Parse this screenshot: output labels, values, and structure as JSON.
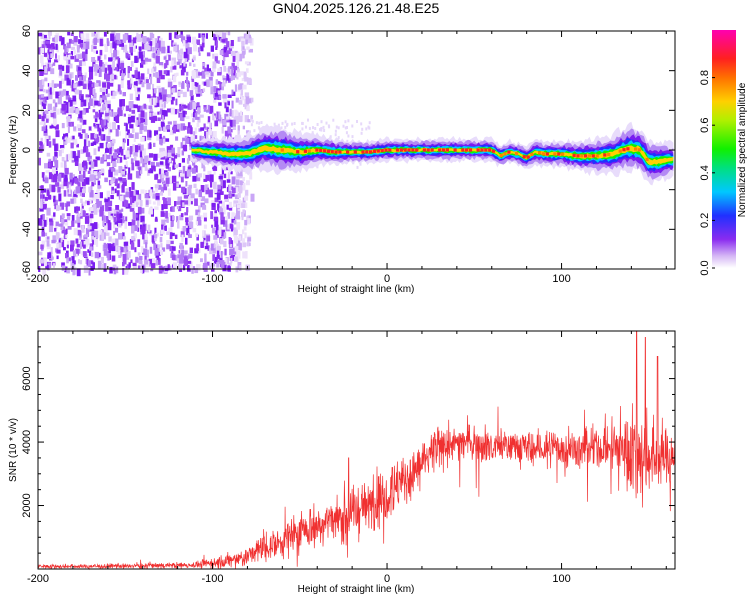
{
  "title": "GN04.2025.126.21.48.E25",
  "colors": {
    "snr_line": "#f03030",
    "axis": "#000000",
    "background": "#ffffff",
    "noise": "#7a1cf0"
  },
  "chart_data": [
    {
      "type": "heatmap",
      "xlabel": "Height of straight line (km)",
      "ylabel": "Frequency (Hz)",
      "xlim": [
        -200,
        165
      ],
      "ylim": [
        -60,
        60
      ],
      "x_ticks": [
        -200,
        -100,
        0,
        100
      ],
      "y_ticks": [
        -60,
        -40,
        -20,
        0,
        20,
        40,
        60
      ],
      "colorbar": {
        "label": "Normalized spectral amplitude",
        "range": [
          0,
          1
        ],
        "ticks": [
          "0.0",
          "0.2",
          "0.4",
          "0.6",
          "0.8"
        ],
        "colormap": "rainbow (white-violet-blue-cyan-green-yellow-orange-red-magenta)"
      },
      "noise_region_x": [
        -200,
        -80
      ],
      "signal_start_x": -112,
      "signal_center_freq": [
        [
          -112,
          0
        ],
        [
          -100,
          -1
        ],
        [
          -90,
          -2
        ],
        [
          -80,
          -2
        ],
        [
          -70,
          1
        ],
        [
          -60,
          0
        ],
        [
          -50,
          -1
        ],
        [
          -40,
          0
        ],
        [
          -30,
          -1
        ],
        [
          -20,
          -1
        ],
        [
          -10,
          -1
        ],
        [
          0,
          0
        ],
        [
          10,
          0
        ],
        [
          20,
          0
        ],
        [
          30,
          0
        ],
        [
          40,
          0
        ],
        [
          50,
          0
        ],
        [
          60,
          0
        ],
        [
          65,
          -3
        ],
        [
          70,
          -1
        ],
        [
          75,
          -2
        ],
        [
          80,
          -4
        ],
        [
          85,
          -1
        ],
        [
          90,
          -2
        ],
        [
          100,
          -2
        ],
        [
          110,
          -3
        ],
        [
          120,
          -3
        ],
        [
          130,
          -2
        ],
        [
          135,
          0
        ],
        [
          140,
          1
        ],
        [
          145,
          0
        ],
        [
          150,
          -6
        ],
        [
          155,
          -6
        ],
        [
          160,
          -5
        ],
        [
          165,
          -5
        ]
      ],
      "signal_halfwidth_hz": [
        [
          -112,
          3
        ],
        [
          -80,
          5
        ],
        [
          -60,
          6
        ],
        [
          -40,
          4
        ],
        [
          -20,
          3
        ],
        [
          0,
          3
        ],
        [
          20,
          3
        ],
        [
          50,
          3
        ],
        [
          80,
          3
        ],
        [
          110,
          4
        ],
        [
          140,
          6
        ],
        [
          150,
          6
        ],
        [
          165,
          4
        ]
      ]
    },
    {
      "type": "line",
      "xlabel": "Height of straight line (km)",
      "ylabel": "SNR (10 * v/v)",
      "xlim": [
        -200,
        165
      ],
      "ylim": [
        0,
        7500
      ],
      "x_ticks": [
        -200,
        -100,
        0,
        100
      ],
      "y_ticks": [
        2000,
        4000,
        6000
      ],
      "series": [
        {
          "values_note_mean": [
            [
              -200,
              80
            ],
            [
              -150,
              90
            ],
            [
              -110,
              130
            ],
            [
              -90,
              250
            ],
            [
              -80,
              400
            ],
            [
              -70,
              700
            ],
            [
              -60,
              900
            ],
            [
              -50,
              1200
            ],
            [
              -40,
              1400
            ],
            [
              -30,
              1600
            ],
            [
              -20,
              1800
            ],
            [
              -10,
              2000
            ],
            [
              0,
              2400
            ],
            [
              10,
              2800
            ],
            [
              20,
              3300
            ],
            [
              30,
              3800
            ],
            [
              40,
              4000
            ],
            [
              50,
              4000
            ],
            [
              60,
              3900
            ],
            [
              70,
              3900
            ],
            [
              80,
              3800
            ],
            [
              90,
              3800
            ],
            [
              100,
              3800
            ],
            [
              110,
              3750
            ],
            [
              120,
              3800
            ],
            [
              130,
              3900
            ],
            [
              140,
              3700
            ],
            [
              150,
              3500
            ],
            [
              160,
              3600
            ],
            [
              165,
              3600
            ]
          ],
          "noise_amplitude": [
            [
              -200,
              60
            ],
            [
              -110,
              100
            ],
            [
              -80,
              350
            ],
            [
              -50,
              600
            ],
            [
              -20,
              800
            ],
            [
              0,
              900
            ],
            [
              20,
              700
            ],
            [
              40,
              600
            ],
            [
              80,
              550
            ],
            [
              110,
              550
            ],
            [
              130,
              800
            ],
            [
              140,
              1400
            ],
            [
              150,
              1300
            ],
            [
              165,
              1000
            ]
          ],
          "peaks": [
            [
              143,
              7500
            ],
            [
              148,
              7300
            ],
            [
              155,
              6700
            ],
            [
              -22,
              3500
            ],
            [
              3,
              3200
            ]
          ]
        }
      ]
    }
  ]
}
